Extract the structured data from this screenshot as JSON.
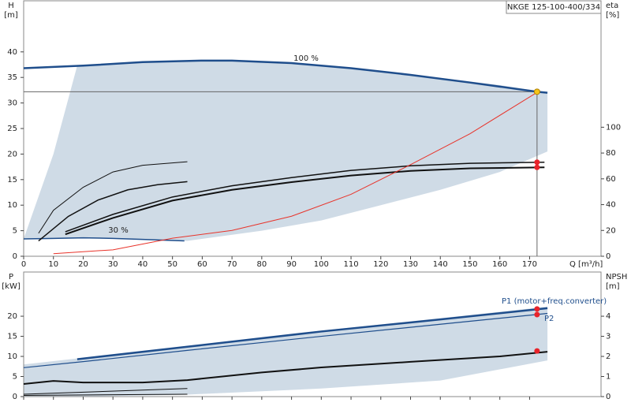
{
  "chart_data": [
    {
      "type": "line",
      "title": "NKGE 125-100-400/334",
      "x_label": "Q [m³/h]",
      "y_label": "H",
      "y_unit": "[m]",
      "y2_label": "eta",
      "y2_unit": "[%]",
      "xlim": [
        0,
        194
      ],
      "xticks": [
        0,
        10,
        20,
        30,
        40,
        50,
        60,
        70,
        80,
        90,
        100,
        110,
        120,
        130,
        140,
        150,
        160,
        170
      ],
      "ylim": [
        0,
        50
      ],
      "yticks": [
        0,
        5,
        10,
        15,
        20,
        25,
        30,
        35,
        40
      ],
      "y2lim": [
        0,
        198
      ],
      "y2ticks": [
        0,
        20,
        40,
        60,
        80,
        100
      ],
      "area": {
        "color": "#cfdbe6",
        "x": [
          0,
          10,
          18,
          40,
          55,
          80,
          100,
          120,
          140,
          160,
          176
        ],
        "high": [
          3.4,
          20,
          37.3,
          38,
          38.2,
          38.2,
          37.3,
          36.1,
          34.9,
          33.5,
          32
        ],
        "low": [
          3.4,
          3.5,
          3.6,
          3.3,
          3.0,
          5,
          7,
          10,
          13,
          16.5,
          20.5
        ]
      },
      "series": [
        {
          "name": "100 %",
          "color": "#1f4e8c",
          "width": 2.5,
          "x": [
            0,
            20,
            40,
            60,
            70,
            90,
            110,
            130,
            150,
            172.5,
            176
          ],
          "values": [
            36.8,
            37.3,
            38,
            38.3,
            38.3,
            37.8,
            36.8,
            35.5,
            34,
            32.2,
            32
          ]
        },
        {
          "name": "30 %",
          "color": "#1f4e8c",
          "width": 1.5,
          "x": [
            0,
            10,
            20,
            30,
            40,
            54
          ],
          "values": [
            3.4,
            3.5,
            3.6,
            3.5,
            3.3,
            3.0
          ]
        },
        {
          "color": "#111",
          "width": 1,
          "x": [
            5,
            10,
            20,
            30,
            40,
            55
          ],
          "values": [
            4.5,
            9,
            13.5,
            16.5,
            17.8,
            18.5
          ]
        },
        {
          "color": "#111",
          "width": 1.5,
          "x": [
            5,
            15,
            25,
            35,
            45,
            55
          ],
          "values": [
            3,
            7.8,
            11,
            13,
            14,
            14.6
          ]
        },
        {
          "color": "#111",
          "width": 2,
          "x": [
            14,
            30,
            50,
            70,
            90,
            110,
            130,
            150,
            175
          ],
          "values": [
            4.3,
            7.5,
            10.9,
            13,
            14.5,
            15.8,
            16.7,
            17.2,
            17.4
          ]
        },
        {
          "color": "#111",
          "width": 1.5,
          "x": [
            14,
            30,
            50,
            70,
            90,
            110,
            130,
            150,
            175
          ],
          "values": [
            4.8,
            8.2,
            11.6,
            13.8,
            15.4,
            16.8,
            17.7,
            18.2,
            18.4
          ]
        },
        {
          "color": "#e8332a",
          "width": 1,
          "axis": "y2",
          "x": [
            10,
            30,
            50,
            70,
            90,
            110,
            130,
            150,
            172.5
          ],
          "values": [
            2,
            5,
            14,
            20,
            31,
            48,
            71,
            95,
            127
          ]
        }
      ],
      "points": [
        {
          "x": 172.5,
          "y": 32.2,
          "color": "#f5c518",
          "duty": true
        },
        {
          "x": 172.5,
          "y": 18.4,
          "color": "#e8232a"
        },
        {
          "x": 172.5,
          "y": 17.4,
          "color": "#e8232a"
        }
      ]
    },
    {
      "type": "line",
      "y_label": "P",
      "y_unit": "[kW]",
      "y2_label": "NPSH",
      "y2_unit": "[m]",
      "xlim": [
        0,
        194
      ],
      "ylim": [
        0,
        31
      ],
      "yticks": [
        0,
        5,
        10,
        15,
        20
      ],
      "y2lim": [
        0,
        6.2
      ],
      "y2ticks": [
        0,
        1,
        2,
        3,
        4
      ],
      "area": {
        "color": "#cfdbe6",
        "x": [
          0,
          18,
          55,
          100,
          140,
          176
        ],
        "high": [
          8,
          9.5,
          12.6,
          16.4,
          19.5,
          22.4
        ],
        "low": [
          0,
          0,
          0.5,
          2,
          4,
          9
        ]
      },
      "series": [
        {
          "name": "P1 (motor+freq.converter)",
          "color": "#1f4e8c",
          "width": 2.5,
          "x": [
            18,
            55,
            100,
            140,
            176
          ],
          "values": [
            9.3,
            12.4,
            16.2,
            19.2,
            22
          ]
        },
        {
          "name": "P2",
          "color": "#1f4e8c",
          "width": 1.2,
          "x": [
            0,
            20,
            55,
            100,
            140,
            176
          ],
          "values": [
            7.2,
            8.7,
            11.5,
            15,
            18,
            20.7
          ]
        },
        {
          "color": "#111",
          "width": 1,
          "x": [
            0,
            55
          ],
          "values": [
            0.6,
            2
          ]
        },
        {
          "color": "#111",
          "width": 1,
          "x": [
            0,
            55
          ],
          "values": [
            0.3,
            0.6
          ]
        },
        {
          "color": "#111",
          "width": 2,
          "axis": "y2",
          "x": [
            0,
            10,
            20,
            40,
            55,
            80,
            100,
            130,
            160,
            176
          ],
          "values": [
            0.63,
            0.78,
            0.7,
            0.7,
            0.82,
            1.2,
            1.45,
            1.73,
            2,
            2.23
          ]
        }
      ],
      "points": [
        {
          "x": 172.5,
          "y": 21.8,
          "color": "#e8232a"
        },
        {
          "x": 172.5,
          "y": 20.4,
          "color": "#e8232a"
        },
        {
          "x": 172.5,
          "y": 2.27,
          "color": "#e8232a",
          "axis": "y2"
        }
      ]
    }
  ]
}
